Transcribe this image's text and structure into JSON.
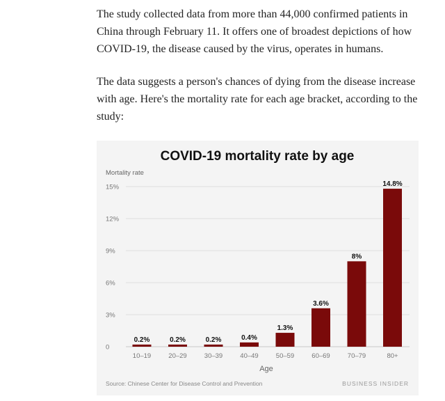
{
  "article": {
    "paragraphs": [
      "The study collected data from more than 44,000 confirmed patients in China through February 11. It offers one of broadest depictions of how COVID-19, the disease caused by the virus, operates in humans.",
      "The data suggests a person's chances of dying from the disease increase with age. Here's the mortality rate for each age bracket, according to the study:"
    ]
  },
  "chart_data": {
    "type": "bar",
    "title": "COVID-19 mortality rate by age",
    "ylabel": "Mortality rate",
    "xlabel": "Age",
    "categories": [
      "10–19",
      "20–29",
      "30–39",
      "40–49",
      "50–59",
      "60–69",
      "70–79",
      "80+"
    ],
    "values": [
      0.2,
      0.2,
      0.2,
      0.4,
      1.3,
      3.6,
      8,
      14.8
    ],
    "value_labels": [
      "0.2%",
      "0.2%",
      "0.2%",
      "0.4%",
      "1.3%",
      "3.6%",
      "8%",
      "14.8%"
    ],
    "yticks": [
      "0",
      "3%",
      "6%",
      "9%",
      "12%",
      "15%"
    ],
    "ytick_values": [
      0,
      3,
      6,
      9,
      12,
      15
    ],
    "ylim": [
      0,
      15
    ],
    "grid": true,
    "bar_color": "#7a0a0a",
    "source": "Source: Chinese Center for Disease Control and Prevention",
    "brand": "BUSINESS INSIDER"
  }
}
